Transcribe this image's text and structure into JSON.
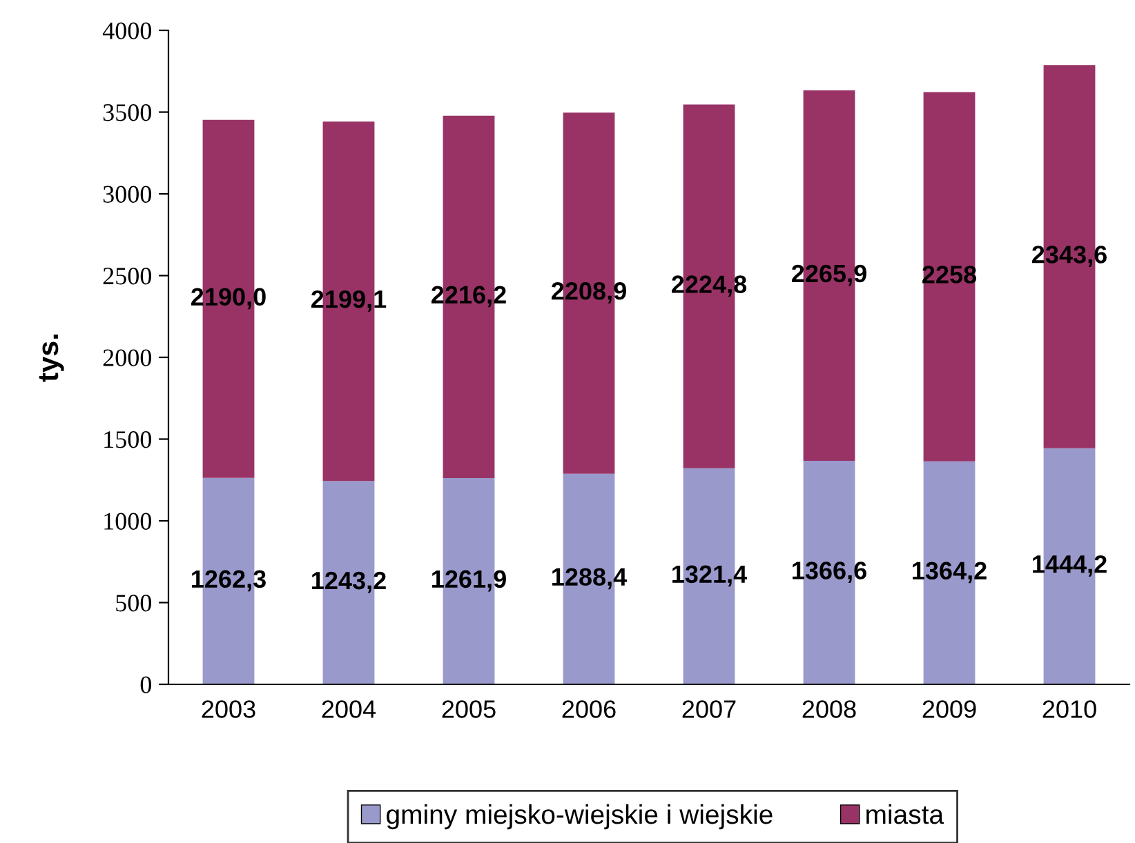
{
  "chart_data": {
    "type": "bar",
    "stacked": true,
    "ylabel": "tys.",
    "categories": [
      "2003",
      "2004",
      "2005",
      "2006",
      "2007",
      "2008",
      "2009",
      "2010"
    ],
    "series": [
      {
        "name": "gminy miejsko-wiejskie i wiejskie",
        "color": "#9999cc",
        "values": [
          1262.3,
          1243.2,
          1261.9,
          1288.4,
          1321.4,
          1366.6,
          1364.2,
          1444.2
        ],
        "value_labels": [
          "1262,3",
          "1243,2",
          "1261,9",
          "1288,4",
          "1321,4",
          "1366,6",
          "1364,2",
          "1444,2"
        ]
      },
      {
        "name": "miasta",
        "color": "#993366",
        "values": [
          2190.0,
          2199.1,
          2216.2,
          2208.9,
          2224.8,
          2265.9,
          2258,
          2343.6
        ],
        "value_labels": [
          "2190,0",
          "2199,1",
          "2216,2",
          "2208,9",
          "2224,8",
          "2265,9",
          "2258",
          "2343,6"
        ]
      }
    ],
    "ylim": [
      0,
      4000
    ],
    "yticks": [
      0,
      500,
      1000,
      1500,
      2000,
      2500,
      3000,
      3500,
      4000
    ],
    "grid": false,
    "legend": "bottom"
  }
}
